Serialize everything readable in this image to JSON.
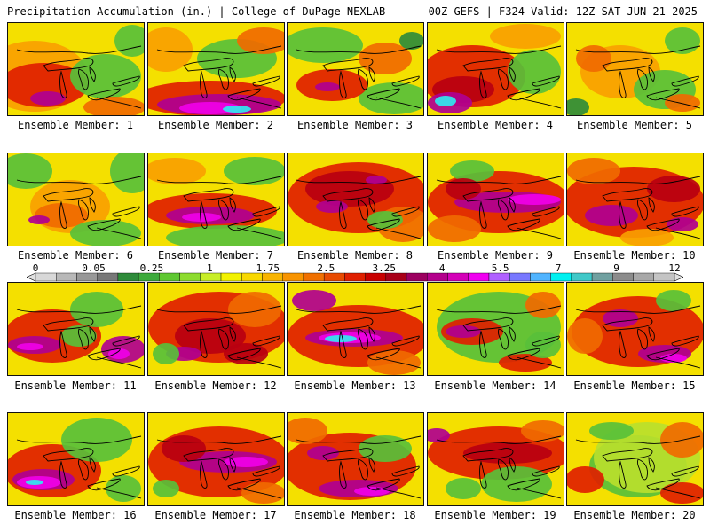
{
  "header": {
    "left_title": "Precipitation Accumulation (in.) | College of DuPage NEXLAB",
    "right_title": "00Z GEFS | F324 Valid: 12Z SAT JUN 21 2025"
  },
  "colorbar": {
    "tick_labels": [
      "0",
      "0.05",
      "0.25",
      "1",
      "1.75",
      "2.5",
      "3.25",
      "4",
      "5.5",
      "7",
      "9",
      "12"
    ],
    "colors": [
      "#d8d8d8",
      "#b8b8b8",
      "#989898",
      "#787878",
      "#2e8b3a",
      "#3daa3c",
      "#5fc832",
      "#8ddc2e",
      "#c8ee28",
      "#f2f200",
      "#f8d800",
      "#f8b400",
      "#f89400",
      "#f07000",
      "#e84a00",
      "#e02000",
      "#c80000",
      "#a80018",
      "#9c0060",
      "#b4008c",
      "#d400b8",
      "#f000f0",
      "#b060ff",
      "#7878ff",
      "#50b4ff",
      "#00f0f0",
      "#40c8c8",
      "#70a0a0",
      "#8c8c8c",
      "#a8a8a8",
      "#c4c4c4"
    ]
  },
  "map_colors": {
    "green": "#58c03a",
    "yellowgreen": "#b8e02c",
    "yellow": "#f4e000",
    "orange": "#f8a000",
    "redorange": "#f06a00",
    "red": "#e02000",
    "darkred": "#b80010",
    "purple": "#b00090",
    "magenta": "#f000e8",
    "cyan": "#30e8f0",
    "darkgreen": "#2e8b3a"
  },
  "members": [
    {
      "label": "Ensemble Member: 1",
      "pattern": "red-west"
    },
    {
      "label": "Ensemble Member: 2",
      "pattern": "magenta-south"
    },
    {
      "label": "Ensemble Member: 3",
      "pattern": "green-mixed"
    },
    {
      "label": "Ensemble Member: 4",
      "pattern": "red-cyan-west"
    },
    {
      "label": "Ensemble Member: 5",
      "pattern": "yellow-mixed"
    },
    {
      "label": "Ensemble Member: 6",
      "pattern": "yellow-green"
    },
    {
      "label": "Ensemble Member: 7",
      "pattern": "magenta-band-green-south"
    },
    {
      "label": "Ensemble Member: 8",
      "pattern": "red-dark"
    },
    {
      "label": "Ensemble Member: 9",
      "pattern": "magenta-band"
    },
    {
      "label": "Ensemble Member: 10",
      "pattern": "red-purple"
    },
    {
      "label": "Ensemble Member: 11",
      "pattern": "purple-west-east"
    },
    {
      "label": "Ensemble Member: 12",
      "pattern": "red-heavy"
    },
    {
      "label": "Ensemble Member: 13",
      "pattern": "cyan-band"
    },
    {
      "label": "Ensemble Member: 14",
      "pattern": "purple-mixed"
    },
    {
      "label": "Ensemble Member: 15",
      "pattern": "red-southeast"
    },
    {
      "label": "Ensemble Member: 16",
      "pattern": "cyan-west"
    },
    {
      "label": "Ensemble Member: 17",
      "pattern": "purple-band"
    },
    {
      "label": "Ensemble Member: 18",
      "pattern": "purple-south"
    },
    {
      "label": "Ensemble Member: 19",
      "pattern": "red-band-green"
    },
    {
      "label": "Ensemble Member: 20",
      "pattern": "green-central"
    }
  ]
}
